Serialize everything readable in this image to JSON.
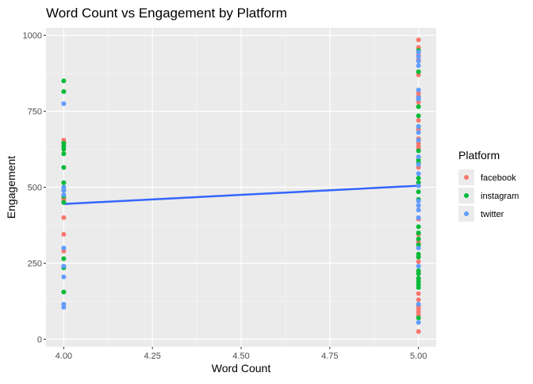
{
  "chart_data": {
    "type": "scatter",
    "title": "Word Count vs Engagement by Platform",
    "xlabel": "Word Count",
    "ylabel": "Engagement",
    "xlim": [
      3.95,
      5.05
    ],
    "ylim": [
      -25,
      1025
    ],
    "x_ticks": [
      {
        "value": 4.0,
        "label": "4.00"
      },
      {
        "value": 4.25,
        "label": "4.25"
      },
      {
        "value": 4.5,
        "label": "4.50"
      },
      {
        "value": 4.75,
        "label": "4.75"
      },
      {
        "value": 5.0,
        "label": "5.00"
      }
    ],
    "y_ticks": [
      {
        "value": 0,
        "label": "0"
      },
      {
        "value": 250,
        "label": "250"
      },
      {
        "value": 500,
        "label": "500"
      },
      {
        "value": 750,
        "label": "750"
      },
      {
        "value": 1000,
        "label": "1000"
      }
    ],
    "grid": true,
    "legend": {
      "title": "Platform",
      "position": "right",
      "entries": [
        "facebook",
        "instagram",
        "twitter"
      ]
    },
    "series": [
      {
        "name": "facebook",
        "color": "#F8766D",
        "points": [
          [
            4,
            655
          ],
          [
            4,
            645
          ],
          [
            4,
            490
          ],
          [
            4,
            465
          ],
          [
            4,
            460
          ],
          [
            4,
            400
          ],
          [
            4,
            345
          ],
          [
            4,
            290
          ],
          [
            5,
            985
          ],
          [
            5,
            960
          ],
          [
            5,
            935
          ],
          [
            5,
            920
          ],
          [
            5,
            880
          ],
          [
            5,
            870
          ],
          [
            5,
            810
          ],
          [
            5,
            800
          ],
          [
            5,
            780
          ],
          [
            5,
            720
          ],
          [
            5,
            690
          ],
          [
            5,
            660
          ],
          [
            5,
            645
          ],
          [
            5,
            635
          ],
          [
            5,
            625
          ],
          [
            5,
            600
          ],
          [
            5,
            565
          ],
          [
            5,
            505
          ],
          [
            5,
            440
          ],
          [
            5,
            395
          ],
          [
            5,
            345
          ],
          [
            5,
            320
          ],
          [
            5,
            280
          ],
          [
            5,
            255
          ],
          [
            5,
            220
          ],
          [
            5,
            200
          ],
          [
            5,
            150
          ],
          [
            5,
            130
          ],
          [
            5,
            110
          ],
          [
            5,
            100
          ],
          [
            5,
            90
          ],
          [
            5,
            80
          ],
          [
            5,
            25
          ]
        ]
      },
      {
        "name": "instagram",
        "color": "#00BA38",
        "points": [
          [
            4,
            850
          ],
          [
            4,
            815
          ],
          [
            4,
            645
          ],
          [
            4,
            635
          ],
          [
            4,
            625
          ],
          [
            4,
            610
          ],
          [
            4,
            565
          ],
          [
            4,
            515
          ],
          [
            4,
            500
          ],
          [
            4,
            490
          ],
          [
            4,
            470
          ],
          [
            4,
            450
          ],
          [
            4,
            265
          ],
          [
            4,
            235
          ],
          [
            4,
            155
          ],
          [
            5,
            950
          ],
          [
            5,
            880
          ],
          [
            5,
            765
          ],
          [
            5,
            735
          ],
          [
            5,
            700
          ],
          [
            5,
            620
          ],
          [
            5,
            590
          ],
          [
            5,
            580
          ],
          [
            5,
            530
          ],
          [
            5,
            515
          ],
          [
            5,
            485
          ],
          [
            5,
            460
          ],
          [
            5,
            370
          ],
          [
            5,
            350
          ],
          [
            5,
            330
          ],
          [
            5,
            310
          ],
          [
            5,
            280
          ],
          [
            5,
            270
          ],
          [
            5,
            225
          ],
          [
            5,
            215
          ],
          [
            5,
            200
          ],
          [
            5,
            190
          ],
          [
            5,
            180
          ],
          [
            5,
            170
          ],
          [
            5,
            70
          ]
        ]
      },
      {
        "name": "twitter",
        "color": "#619CFF",
        "points": [
          [
            4,
            775
          ],
          [
            4,
            500
          ],
          [
            4,
            490
          ],
          [
            4,
            475
          ],
          [
            4,
            300
          ],
          [
            4,
            240
          ],
          [
            4,
            205
          ],
          [
            4,
            115
          ],
          [
            4,
            105
          ],
          [
            5,
            945
          ],
          [
            5,
            930
          ],
          [
            5,
            915
          ],
          [
            5,
            900
          ],
          [
            5,
            820
          ],
          [
            5,
            795
          ],
          [
            5,
            790
          ],
          [
            5,
            700
          ],
          [
            5,
            680
          ],
          [
            5,
            655
          ],
          [
            5,
            600
          ],
          [
            5,
            575
          ],
          [
            5,
            545
          ],
          [
            5,
            505
          ],
          [
            5,
            455
          ],
          [
            5,
            440
          ],
          [
            5,
            425
          ],
          [
            5,
            400
          ],
          [
            5,
            300
          ],
          [
            5,
            240
          ],
          [
            5,
            115
          ],
          [
            5,
            55
          ]
        ]
      }
    ],
    "trend_line": {
      "color": "#3366FF",
      "points": [
        [
          4,
          445
        ],
        [
          5,
          505
        ]
      ]
    }
  }
}
